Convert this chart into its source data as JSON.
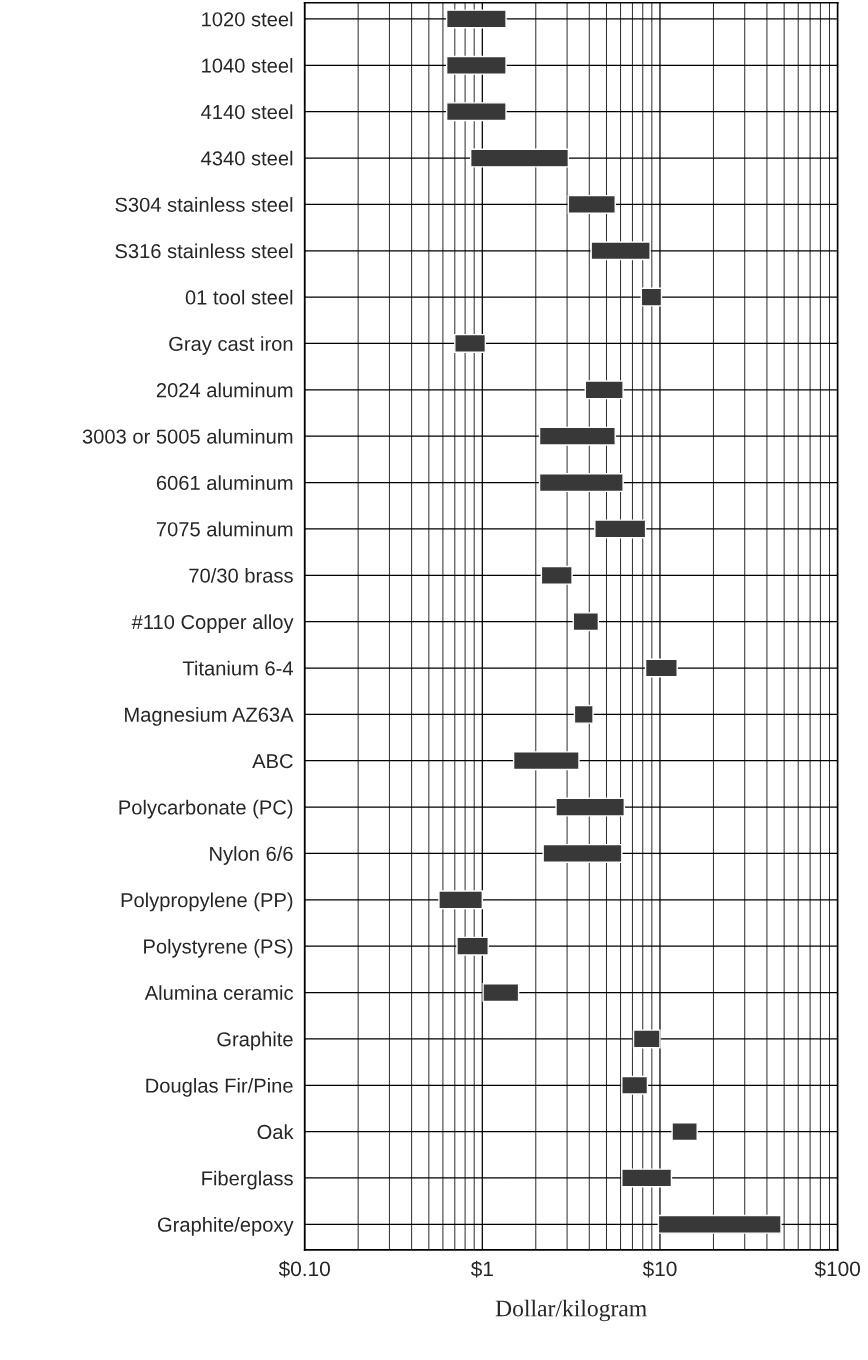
{
  "chart_data": {
    "type": "bar",
    "orientation": "horizontal",
    "xlabel": "Dollar/kilogram",
    "log": "x",
    "categories": [
      "1020 steel",
      "1040 steel",
      "4140 steel",
      "4340 steel",
      "S304 stainless steel",
      "S316 stainless steel",
      "01 tool steel",
      "Gray cast iron",
      "2024 aluminum",
      "3003 or 5005 aluminum",
      "6061 aluminum",
      "7075 aluminum",
      "70/30 brass",
      "#110 Copper alloy",
      "Titanium 6-4",
      "Magnesium AZ63A",
      "ABC",
      "Polycarbonate (PC)",
      "Nylon 6/6",
      "Polypropylene (PP)",
      "Polystyrene (PS)",
      "Alumina ceramic",
      "Graphite",
      "Douglas Fir/Pine",
      "Oak",
      "Fiberglass",
      "Graphite/epoxy"
    ],
    "base": [
      0.63,
      0.63,
      0.63,
      0.86,
      3.05,
      4.1,
      7.85,
      0.7,
      3.8,
      2.1,
      2.1,
      4.3,
      2.15,
      3.25,
      8.3,
      3.3,
      1.5,
      2.6,
      2.2,
      0.57,
      0.72,
      1.01,
      7.1,
      6.1,
      11.7,
      6.1,
      9.8
    ],
    "values": [
      0.73,
      0.73,
      0.73,
      2.19,
      2.55,
      4.7,
      2.35,
      0.34,
      2.4,
      3.5,
      4.1,
      4.0,
      1.05,
      1.25,
      4.2,
      0.9,
      2.0,
      3.7,
      3.9,
      0.43,
      0.36,
      0.59,
      2.9,
      2.4,
      4.5,
      5.5,
      38.2
    ],
    "color": "#383838",
    "xlim": [
      0.1,
      100
    ],
    "xticks": [
      {
        "value": 0.1,
        "label": "$0.10"
      },
      {
        "value": 1,
        "label": "$1"
      },
      {
        "value": 10,
        "label": "$10"
      },
      {
        "value": 100,
        "label": "$100"
      }
    ],
    "grid": true
  }
}
